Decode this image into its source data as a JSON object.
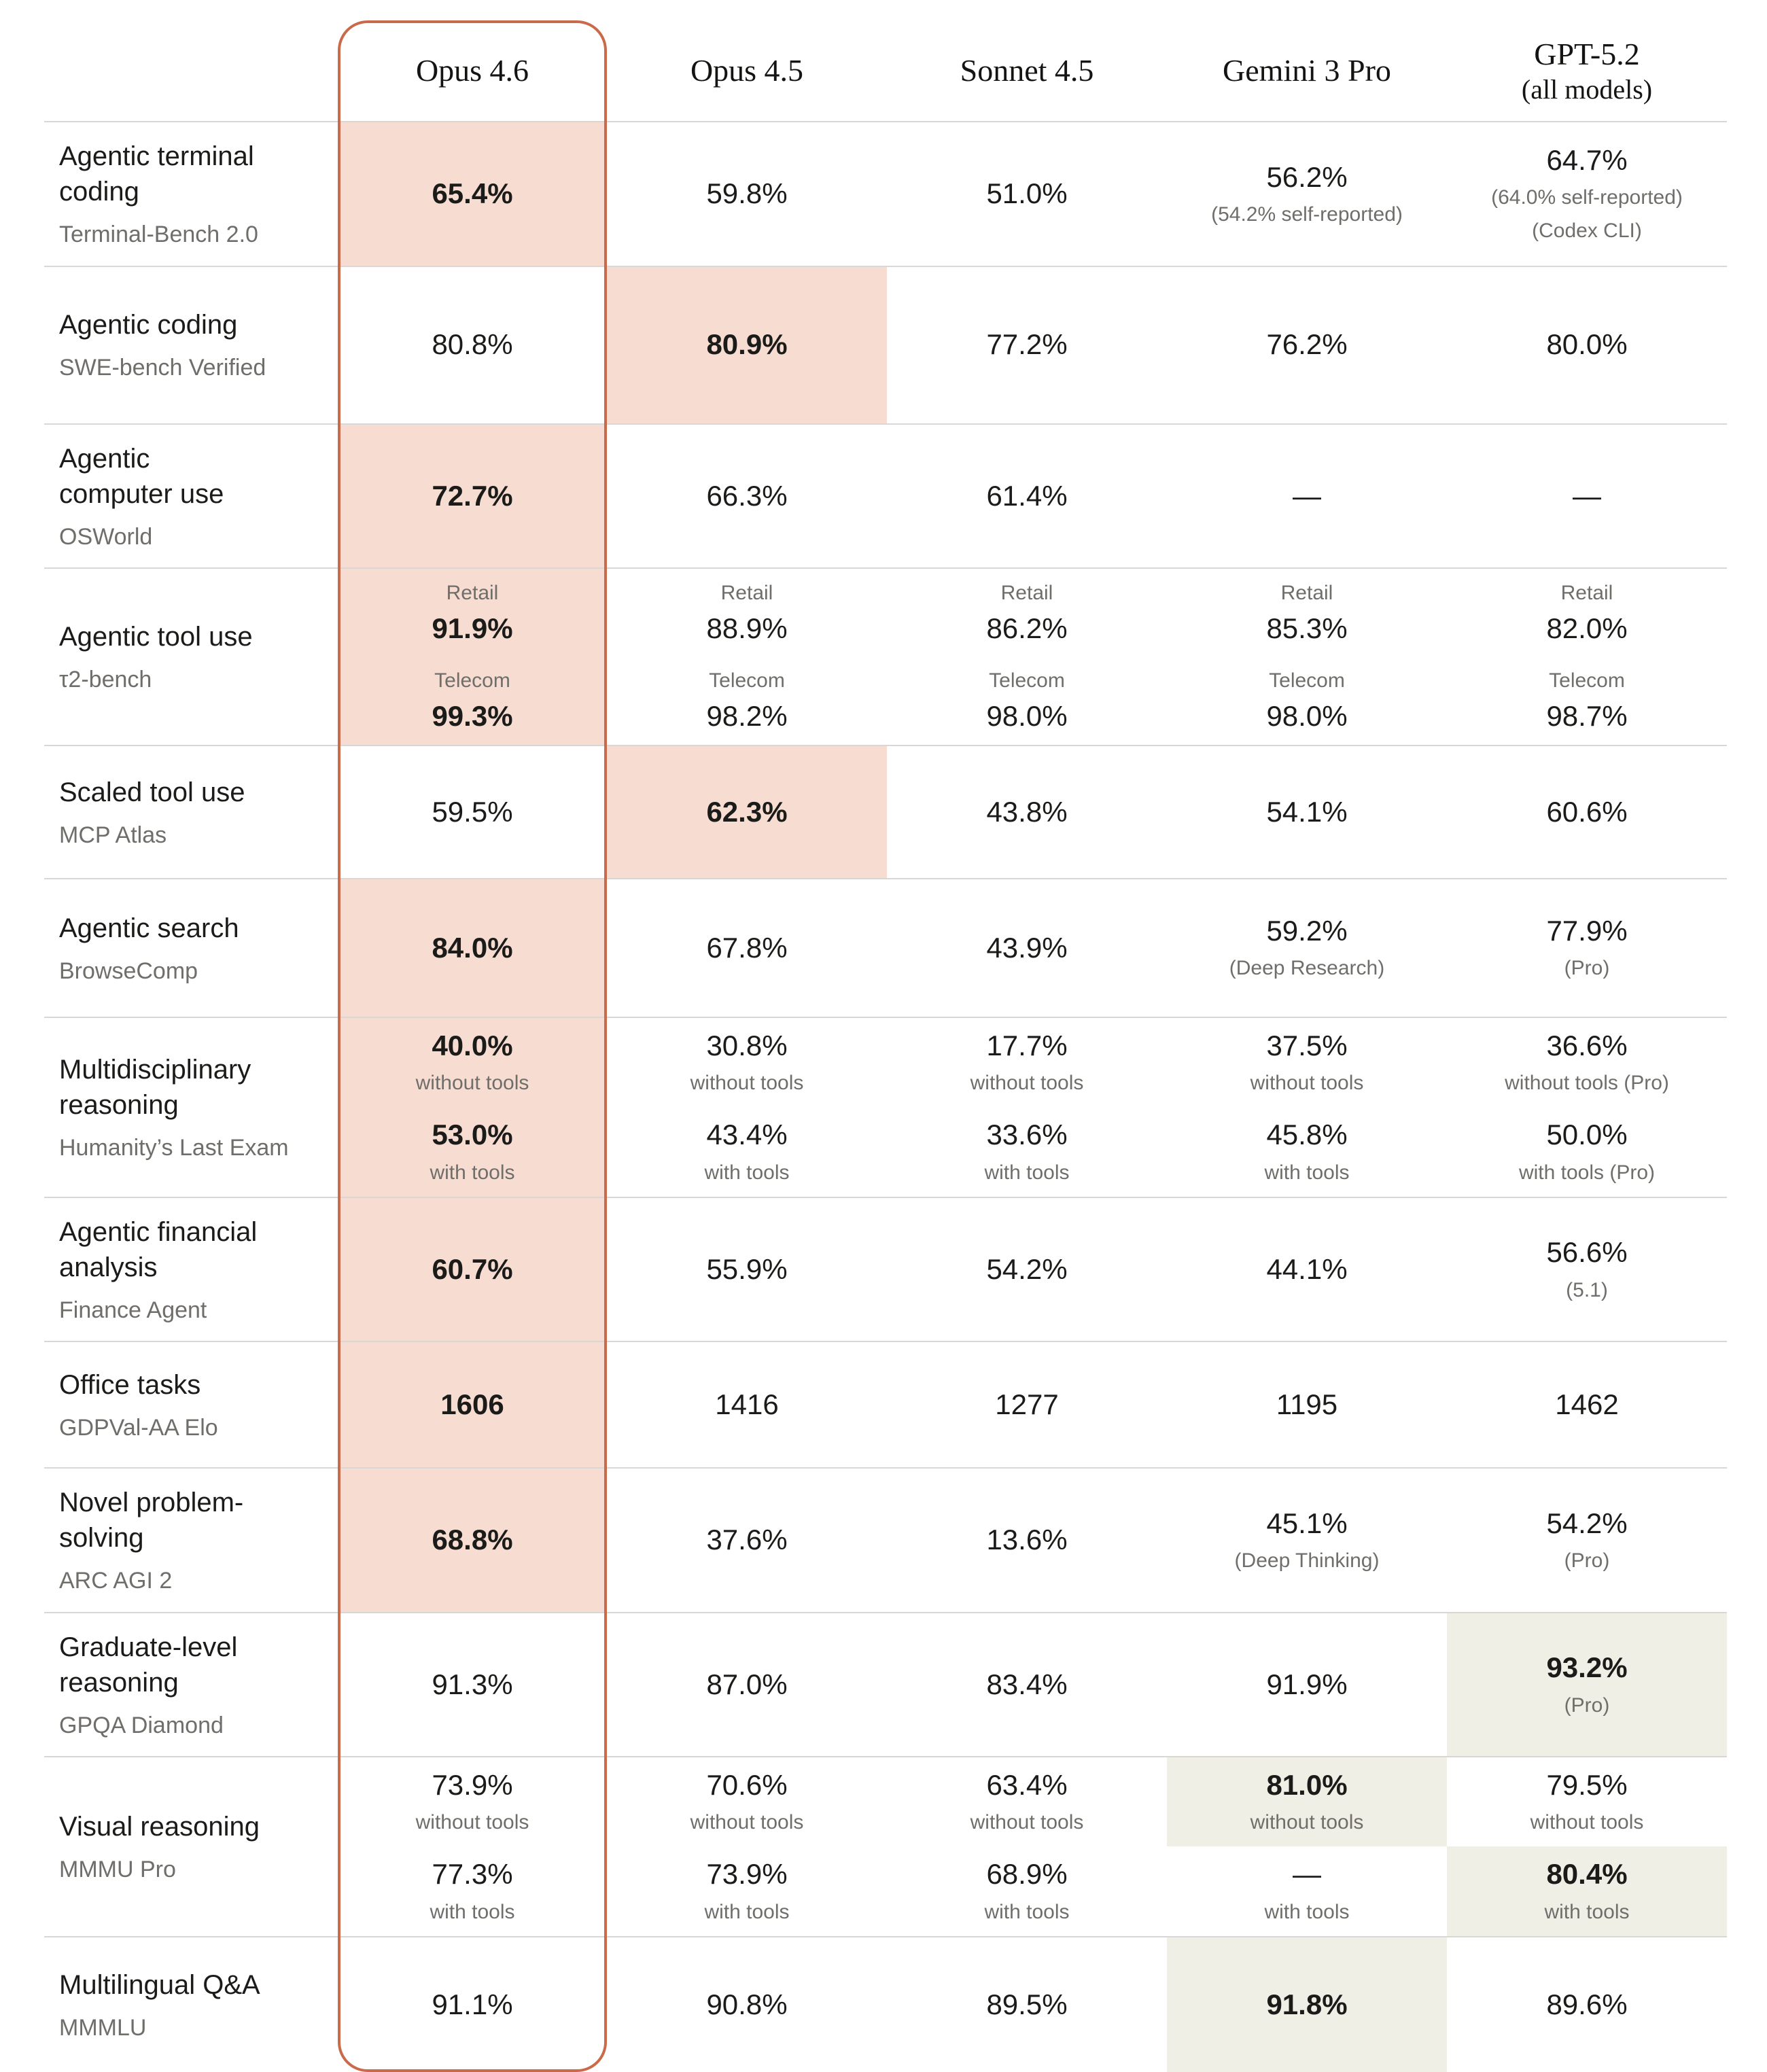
{
  "colors": {
    "highlight_pink": "#F7DCD1",
    "highlight_beige": "#F0EFE6",
    "outline_orange": "#C96B4A",
    "grid_line": "#D8D7D3",
    "text_primary": "#1B1B19",
    "text_secondary": "#6F6E6A"
  },
  "columns": [
    {
      "name": "Opus 4.6"
    },
    {
      "name": "Opus 4.5"
    },
    {
      "name": "Sonnet 4.5"
    },
    {
      "name": "Gemini 3 Pro"
    },
    {
      "name": "GPT-5.2",
      "note": "(all models)"
    }
  ],
  "rows": [
    {
      "label": "Agentic terminal\ncoding",
      "benchmark": "Terminal-Bench 2.0",
      "cells": [
        {
          "bg": "pink",
          "entries": [
            {
              "value": "65.4%",
              "bold": true
            }
          ]
        },
        {
          "entries": [
            {
              "value": "59.8%"
            }
          ]
        },
        {
          "entries": [
            {
              "value": "51.0%"
            }
          ]
        },
        {
          "entries": [
            {
              "value": "56.2%",
              "notes_below": [
                "(54.2% self-reported)"
              ]
            }
          ]
        },
        {
          "entries": [
            {
              "value": "64.7%",
              "notes_below": [
                "(64.0% self-reported)",
                "(Codex CLI)"
              ]
            }
          ]
        }
      ]
    },
    {
      "label": "Agentic coding",
      "benchmark": "SWE-bench Verified",
      "cells": [
        {
          "entries": [
            {
              "value": "80.8%"
            }
          ]
        },
        {
          "bg": "pink",
          "entries": [
            {
              "value": "80.9%",
              "bold": true
            }
          ]
        },
        {
          "entries": [
            {
              "value": "77.2%"
            }
          ]
        },
        {
          "entries": [
            {
              "value": "76.2%"
            }
          ]
        },
        {
          "entries": [
            {
              "value": "80.0%"
            }
          ]
        }
      ]
    },
    {
      "label": "Agentic\ncomputer use",
      "benchmark": "OSWorld",
      "cells": [
        {
          "bg": "pink",
          "entries": [
            {
              "value": "72.7%",
              "bold": true
            }
          ]
        },
        {
          "entries": [
            {
              "value": "66.3%"
            }
          ]
        },
        {
          "entries": [
            {
              "value": "61.4%"
            }
          ]
        },
        {
          "entries": [
            {
              "value": "—"
            }
          ]
        },
        {
          "entries": [
            {
              "value": "—"
            }
          ]
        }
      ]
    },
    {
      "label": "Agentic tool use",
      "benchmark": "τ2-bench",
      "cells": [
        {
          "bg": "pink",
          "entries": [
            {
              "note_above": "Retail",
              "value": "91.9%",
              "bold": true
            },
            {
              "note_above": "Telecom",
              "value": "99.3%",
              "bold": true
            }
          ]
        },
        {
          "entries": [
            {
              "note_above": "Retail",
              "value": "88.9%"
            },
            {
              "note_above": "Telecom",
              "value": "98.2%"
            }
          ]
        },
        {
          "entries": [
            {
              "note_above": "Retail",
              "value": "86.2%"
            },
            {
              "note_above": "Telecom",
              "value": "98.0%"
            }
          ]
        },
        {
          "entries": [
            {
              "note_above": "Retail",
              "value": "85.3%"
            },
            {
              "note_above": "Telecom",
              "value": "98.0%"
            }
          ]
        },
        {
          "entries": [
            {
              "note_above": "Retail",
              "value": "82.0%"
            },
            {
              "note_above": "Telecom",
              "value": "98.7%"
            }
          ]
        }
      ]
    },
    {
      "label": "Scaled tool use",
      "benchmark": "MCP Atlas",
      "cells": [
        {
          "entries": [
            {
              "value": "59.5%"
            }
          ]
        },
        {
          "bg": "pink",
          "entries": [
            {
              "value": "62.3%",
              "bold": true
            }
          ]
        },
        {
          "entries": [
            {
              "value": "43.8%"
            }
          ]
        },
        {
          "entries": [
            {
              "value": "54.1%"
            }
          ]
        },
        {
          "entries": [
            {
              "value": "60.6%"
            }
          ]
        }
      ]
    },
    {
      "label": "Agentic search",
      "benchmark": "BrowseComp",
      "cells": [
        {
          "bg": "pink",
          "entries": [
            {
              "value": "84.0%",
              "bold": true
            }
          ]
        },
        {
          "entries": [
            {
              "value": "67.8%"
            }
          ]
        },
        {
          "entries": [
            {
              "value": "43.9%"
            }
          ]
        },
        {
          "entries": [
            {
              "value": "59.2%",
              "notes_below": [
                "(Deep Research)"
              ]
            }
          ]
        },
        {
          "entries": [
            {
              "value": "77.9%",
              "notes_below": [
                "(Pro)"
              ]
            }
          ]
        }
      ]
    },
    {
      "label": "Multidisciplinary\nreasoning",
      "benchmark": "Humanity’s Last Exam",
      "cells": [
        {
          "bg": "pink",
          "entries": [
            {
              "value": "40.0%",
              "bold": true,
              "notes_below": [
                "without tools"
              ]
            },
            {
              "value": "53.0%",
              "bold": true,
              "notes_below": [
                "with tools"
              ]
            }
          ]
        },
        {
          "entries": [
            {
              "value": "30.8%",
              "notes_below": [
                "without tools"
              ]
            },
            {
              "value": "43.4%",
              "notes_below": [
                "with tools"
              ]
            }
          ]
        },
        {
          "entries": [
            {
              "value": "17.7%",
              "notes_below": [
                "without tools"
              ]
            },
            {
              "value": "33.6%",
              "notes_below": [
                "with tools"
              ]
            }
          ]
        },
        {
          "entries": [
            {
              "value": "37.5%",
              "notes_below": [
                "without tools"
              ]
            },
            {
              "value": "45.8%",
              "notes_below": [
                "with tools"
              ]
            }
          ]
        },
        {
          "entries": [
            {
              "value": "36.6%",
              "notes_below": [
                "without tools (Pro)"
              ]
            },
            {
              "value": "50.0%",
              "notes_below": [
                "with tools (Pro)"
              ]
            }
          ]
        }
      ]
    },
    {
      "label": "Agentic financial\nanalysis",
      "benchmark": "Finance Agent",
      "cells": [
        {
          "bg": "pink",
          "entries": [
            {
              "value": "60.7%",
              "bold": true
            }
          ]
        },
        {
          "entries": [
            {
              "value": "55.9%"
            }
          ]
        },
        {
          "entries": [
            {
              "value": "54.2%"
            }
          ]
        },
        {
          "entries": [
            {
              "value": "44.1%"
            }
          ]
        },
        {
          "entries": [
            {
              "value": "56.6%",
              "notes_below": [
                "(5.1)"
              ]
            }
          ]
        }
      ]
    },
    {
      "label": "Office tasks",
      "benchmark": "GDPVal-AA Elo",
      "cells": [
        {
          "bg": "pink",
          "entries": [
            {
              "value": "1606",
              "bold": true
            }
          ]
        },
        {
          "entries": [
            {
              "value": "1416"
            }
          ]
        },
        {
          "entries": [
            {
              "value": "1277"
            }
          ]
        },
        {
          "entries": [
            {
              "value": "1195"
            }
          ]
        },
        {
          "entries": [
            {
              "value": "1462"
            }
          ]
        }
      ]
    },
    {
      "label": "Novel problem-\nsolving",
      "benchmark": "ARC AGI 2",
      "cells": [
        {
          "bg": "pink",
          "entries": [
            {
              "value": "68.8%",
              "bold": true
            }
          ]
        },
        {
          "entries": [
            {
              "value": "37.6%"
            }
          ]
        },
        {
          "entries": [
            {
              "value": "13.6%"
            }
          ]
        },
        {
          "entries": [
            {
              "value": "45.1%",
              "notes_below": [
                "(Deep Thinking)"
              ]
            }
          ]
        },
        {
          "entries": [
            {
              "value": "54.2%",
              "notes_below": [
                "(Pro)"
              ]
            }
          ]
        }
      ]
    },
    {
      "label": "Graduate-level\nreasoning",
      "benchmark": "GPQA Diamond",
      "cells": [
        {
          "entries": [
            {
              "value": "91.3%"
            }
          ]
        },
        {
          "entries": [
            {
              "value": "87.0%"
            }
          ]
        },
        {
          "entries": [
            {
              "value": "83.4%"
            }
          ]
        },
        {
          "entries": [
            {
              "value": "91.9%"
            }
          ]
        },
        {
          "bg": "beige",
          "entries": [
            {
              "value": "93.2%",
              "bold": true,
              "notes_below": [
                "(Pro)"
              ]
            }
          ]
        }
      ]
    },
    {
      "label": "Visual reasoning",
      "benchmark": "MMMU Pro",
      "cells": [
        {
          "entries": [
            {
              "value": "73.9%",
              "notes_below": [
                "without tools"
              ]
            },
            {
              "value": "77.3%",
              "notes_below": [
                "with tools"
              ]
            }
          ]
        },
        {
          "entries": [
            {
              "value": "70.6%",
              "notes_below": [
                "without tools"
              ]
            },
            {
              "value": "73.9%",
              "notes_below": [
                "with tools"
              ]
            }
          ]
        },
        {
          "entries": [
            {
              "value": "63.4%",
              "notes_below": [
                "without tools"
              ]
            },
            {
              "value": "68.9%",
              "notes_below": [
                "with tools"
              ]
            }
          ]
        },
        {
          "entries": [
            {
              "value": "81.0%",
              "bold": true,
              "bg": "beige",
              "notes_below": [
                "without tools"
              ]
            },
            {
              "value": "—",
              "notes_below": [
                "with tools"
              ]
            }
          ]
        },
        {
          "entries": [
            {
              "value": "79.5%",
              "notes_below": [
                "without tools"
              ]
            },
            {
              "value": "80.4%",
              "bold": true,
              "bg": "beige",
              "notes_below": [
                "with tools"
              ]
            }
          ]
        }
      ]
    },
    {
      "label": "Multilingual Q&A",
      "benchmark": "MMMLU",
      "cells": [
        {
          "entries": [
            {
              "value": "91.1%"
            }
          ]
        },
        {
          "entries": [
            {
              "value": "90.8%"
            }
          ]
        },
        {
          "entries": [
            {
              "value": "89.5%"
            }
          ]
        },
        {
          "bg": "beige",
          "entries": [
            {
              "value": "91.8%",
              "bold": true
            }
          ]
        },
        {
          "entries": [
            {
              "value": "89.6%"
            }
          ]
        }
      ]
    }
  ],
  "chart_data": {
    "type": "table",
    "columns": [
      "Opus 4.6",
      "Opus 4.5",
      "Sonnet 4.5",
      "Gemini 3 Pro",
      "GPT-5.2 (all models)"
    ],
    "rows": [
      {
        "benchmark": "Agentic terminal coding (Terminal-Bench 2.0)",
        "values": [
          "65.4%",
          "59.8%",
          "51.0%",
          "56.2% (54.2% self-reported)",
          "64.7% (64.0% self-reported) (Codex CLI)"
        ],
        "highlighted": "Opus 4.6"
      },
      {
        "benchmark": "Agentic coding (SWE-bench Verified)",
        "values": [
          "80.8%",
          "80.9%",
          "77.2%",
          "76.2%",
          "80.0%"
        ],
        "highlighted": "Opus 4.5"
      },
      {
        "benchmark": "Agentic computer use (OSWorld)",
        "values": [
          "72.7%",
          "66.3%",
          "61.4%",
          "—",
          "—"
        ],
        "highlighted": "Opus 4.6"
      },
      {
        "benchmark": "Agentic tool use (τ2-bench)",
        "values": [
          "Retail 91.9% / Telecom 99.3%",
          "Retail 88.9% / Telecom 98.2%",
          "Retail 86.2% / Telecom 98.0%",
          "Retail 85.3% / Telecom 98.0%",
          "Retail 82.0% / Telecom 98.7%"
        ],
        "highlighted": "Opus 4.6"
      },
      {
        "benchmark": "Scaled tool use (MCP Atlas)",
        "values": [
          "59.5%",
          "62.3%",
          "43.8%",
          "54.1%",
          "60.6%"
        ],
        "highlighted": "Opus 4.5"
      },
      {
        "benchmark": "Agentic search (BrowseComp)",
        "values": [
          "84.0%",
          "67.8%",
          "43.9%",
          "59.2% (Deep Research)",
          "77.9% (Pro)"
        ],
        "highlighted": "Opus 4.6"
      },
      {
        "benchmark": "Multidisciplinary reasoning (Humanity’s Last Exam)",
        "values": [
          "40.0% without tools / 53.0% with tools",
          "30.8% without tools / 43.4% with tools",
          "17.7% without tools / 33.6% with tools",
          "37.5% without tools / 45.8% with tools",
          "36.6% without tools (Pro) / 50.0% with tools (Pro)"
        ],
        "highlighted": "Opus 4.6"
      },
      {
        "benchmark": "Agentic financial analysis (Finance Agent)",
        "values": [
          "60.7%",
          "55.9%",
          "54.2%",
          "44.1%",
          "56.6% (5.1)"
        ],
        "highlighted": "Opus 4.6"
      },
      {
        "benchmark": "Office tasks (GDPVal-AA Elo)",
        "values": [
          "1606",
          "1416",
          "1277",
          "1195",
          "1462"
        ],
        "highlighted": "Opus 4.6"
      },
      {
        "benchmark": "Novel problem-solving (ARC AGI 2)",
        "values": [
          "68.8%",
          "37.6%",
          "13.6%",
          "45.1% (Deep Thinking)",
          "54.2% (Pro)"
        ],
        "highlighted": "Opus 4.6"
      },
      {
        "benchmark": "Graduate-level reasoning (GPQA Diamond)",
        "values": [
          "91.3%",
          "87.0%",
          "83.4%",
          "91.9%",
          "93.2% (Pro)"
        ],
        "highlighted": "GPT-5.2"
      },
      {
        "benchmark": "Visual reasoning (MMMU Pro)",
        "values": [
          "73.9% without tools / 77.3% with tools",
          "70.6% without tools / 73.9% with tools",
          "63.4% without tools / 68.9% with tools",
          "81.0% without tools / — with tools",
          "79.5% without tools / 80.4% with tools"
        ],
        "highlighted": "Gemini 3 Pro (without tools), GPT-5.2 (with tools)"
      },
      {
        "benchmark": "Multilingual Q&A (MMMLU)",
        "values": [
          "91.1%",
          "90.8%",
          "89.5%",
          "91.8%",
          "89.6%"
        ],
        "highlighted": "Gemini 3 Pro"
      }
    ]
  }
}
